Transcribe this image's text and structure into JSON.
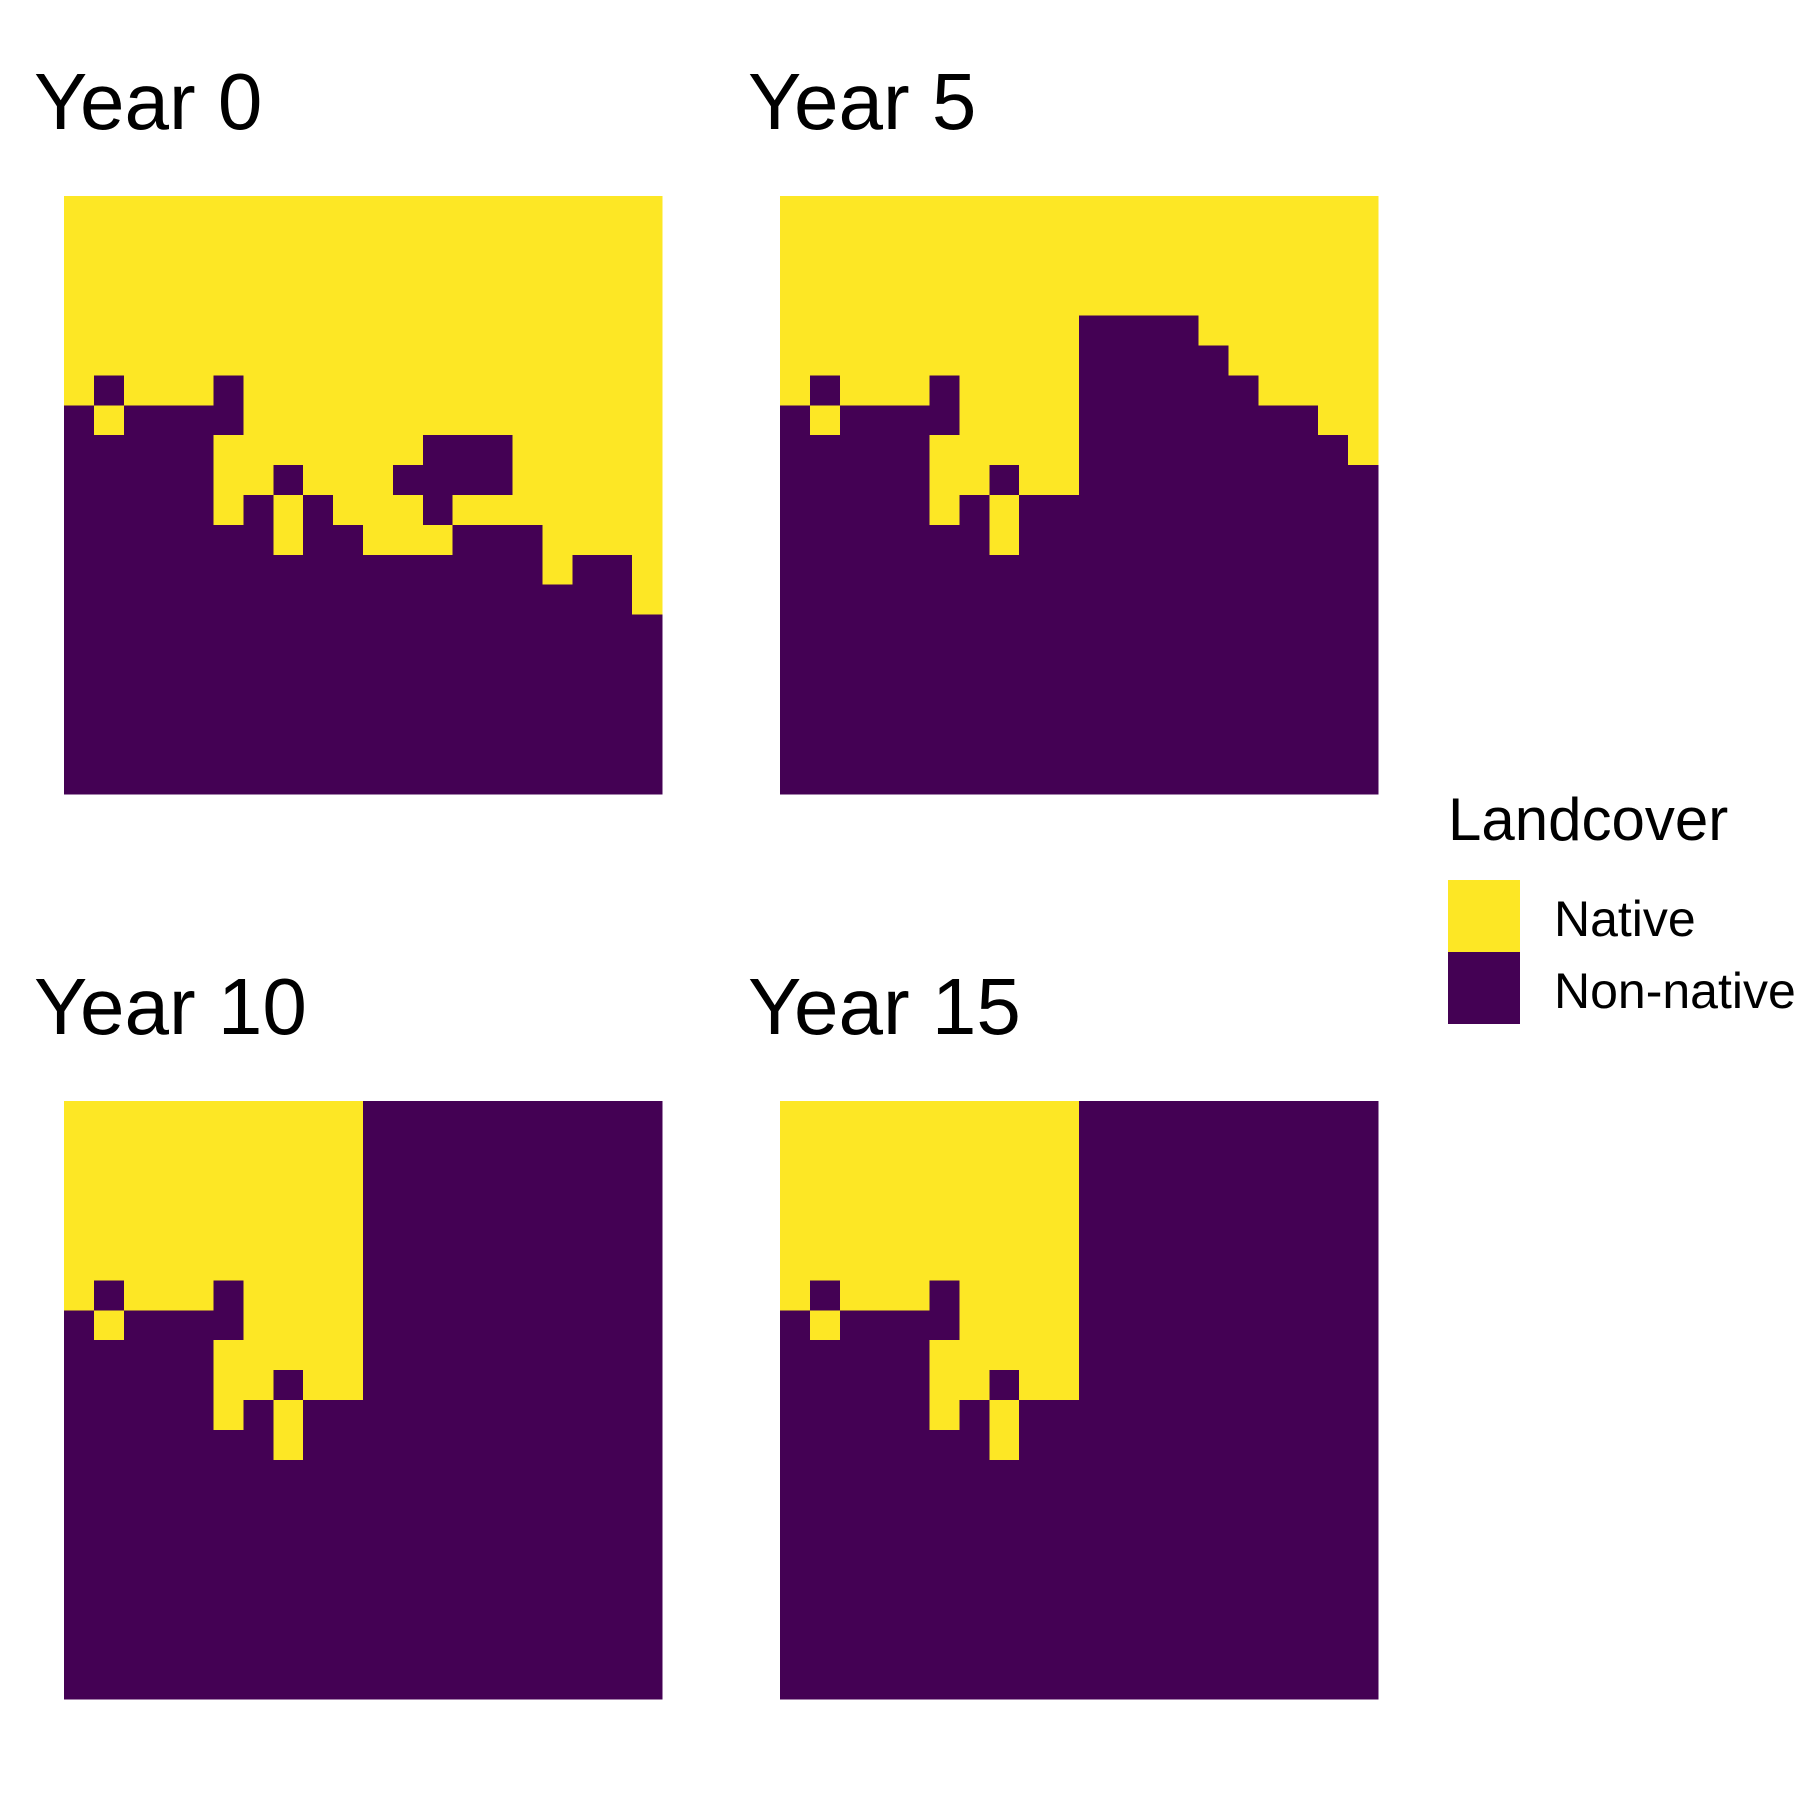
{
  "chart_data": {
    "type": "heatmap",
    "grid": {
      "rows": 20,
      "cols": 20
    },
    "legend": {
      "title": "Landcover",
      "placement": "right",
      "entries": [
        {
          "label": "Native",
          "color": "#FDE725"
        },
        {
          "label": "Non-native",
          "color": "#440154"
        }
      ]
    },
    "panels": [
      {
        "title": "Year 0",
        "native_depth_per_column": [
          7,
          6,
          7,
          7,
          7,
          6,
          9,
          9,
          10,
          10,
          11,
          12,
          11,
          10,
          10,
          12,
          13,
          12,
          12,
          14
        ],
        "native_islands": [
          [
            7,
            1
          ],
          [
            8,
            5
          ],
          [
            9,
            5
          ],
          [
            10,
            5
          ],
          [
            9,
            6
          ],
          [
            10,
            7
          ],
          [
            11,
            7
          ],
          [
            8,
            8
          ],
          [
            9,
            8
          ],
          [
            8,
            9
          ],
          [
            9,
            9
          ],
          [
            10,
            9
          ],
          [
            8,
            10
          ],
          [
            9,
            10
          ],
          [
            11,
            10
          ],
          [
            8,
            11
          ],
          [
            9,
            11
          ],
          [
            10,
            11
          ],
          [
            11,
            12
          ],
          [
            10,
            13
          ],
          [
            10,
            14
          ],
          [
            10,
            15
          ]
        ],
        "nonnative_islands": [
          [
            6,
            1
          ],
          [
            14,
            9
          ],
          [
            9,
            11
          ],
          [
            8,
            12
          ],
          [
            9,
            12
          ],
          [
            10,
            12
          ],
          [
            8,
            13
          ],
          [
            9,
            13
          ],
          [
            11,
            13
          ],
          [
            8,
            14
          ],
          [
            9,
            14
          ],
          [
            11,
            14
          ],
          [
            11,
            15
          ]
        ]
      },
      {
        "title": "Year 5",
        "native_depth_per_column": [
          7,
          6,
          7,
          7,
          7,
          6,
          9,
          9,
          10,
          10,
          4,
          4,
          4,
          4,
          5,
          6,
          7,
          7,
          8,
          9
        ],
        "native_islands": [
          [
            7,
            1
          ],
          [
            8,
            5
          ],
          [
            9,
            5
          ],
          [
            10,
            5
          ],
          [
            9,
            6
          ],
          [
            10,
            7
          ],
          [
            11,
            7
          ],
          [
            8,
            8
          ],
          [
            9,
            8
          ],
          [
            8,
            9
          ],
          [
            9,
            9
          ]
        ],
        "nonnative_islands": [
          [
            6,
            1
          ]
        ]
      },
      {
        "title": "Year 10",
        "native_depth_per_column": [
          7,
          6,
          7,
          7,
          7,
          6,
          9,
          9,
          10,
          10,
          0,
          0,
          0,
          0,
          0,
          0,
          0,
          0,
          0,
          0
        ],
        "native_islands": [
          [
            7,
            1
          ],
          [
            8,
            5
          ],
          [
            9,
            5
          ],
          [
            10,
            5
          ],
          [
            9,
            6
          ],
          [
            10,
            7
          ],
          [
            11,
            7
          ],
          [
            8,
            8
          ],
          [
            9,
            8
          ],
          [
            8,
            9
          ],
          [
            9,
            9
          ]
        ],
        "nonnative_islands": [
          [
            6,
            1
          ]
        ]
      },
      {
        "title": "Year 15",
        "native_depth_per_column": [
          7,
          6,
          7,
          7,
          7,
          6,
          9,
          9,
          10,
          10,
          0,
          0,
          0,
          0,
          0,
          0,
          0,
          0,
          0,
          0
        ],
        "native_islands": [
          [
            7,
            1
          ],
          [
            8,
            5
          ],
          [
            9,
            5
          ],
          [
            10,
            5
          ],
          [
            9,
            6
          ],
          [
            10,
            7
          ],
          [
            11,
            7
          ],
          [
            8,
            8
          ],
          [
            9,
            8
          ],
          [
            8,
            9
          ],
          [
            9,
            9
          ]
        ],
        "nonnative_islands": [
          [
            6,
            1
          ]
        ]
      }
    ]
  }
}
